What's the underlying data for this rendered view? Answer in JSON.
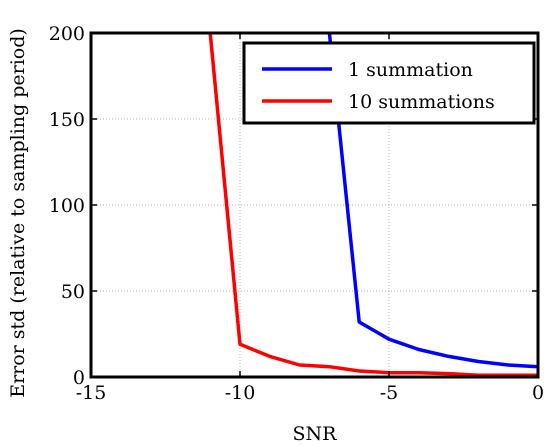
{
  "chart_data": {
    "type": "line",
    "xlabel": "SNR",
    "ylabel": "Error std (relative to sampling period)",
    "xlim": [
      -15,
      0
    ],
    "ylim": [
      0,
      200
    ],
    "xticks": [
      -15,
      -10,
      -5,
      0
    ],
    "yticks": [
      0,
      50,
      100,
      150,
      200
    ],
    "grid": true,
    "legend_position": "top-right",
    "series": [
      {
        "name": "1 summation",
        "color": "#0000ff",
        "x": [
          -7,
          -6,
          -5,
          -4,
          -3,
          -2,
          -1,
          0
        ],
        "y": [
          200,
          32,
          22,
          16,
          12,
          9,
          7,
          6
        ]
      },
      {
        "name": "10 summations",
        "color": "#ff0000",
        "x": [
          -11,
          -10,
          -9,
          -8,
          -7,
          -6,
          -5,
          -4,
          -3,
          -2,
          -1,
          0
        ],
        "y": [
          200,
          19,
          12,
          7,
          6,
          3.5,
          2.5,
          2.5,
          2,
          1,
          1,
          1
        ]
      }
    ]
  }
}
